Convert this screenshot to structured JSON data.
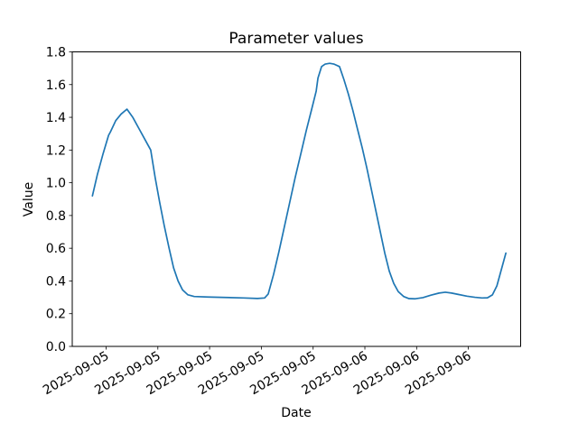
{
  "figure": {
    "background": "#ffffff",
    "axes_background": "#ffffff",
    "spine_color": "#000000",
    "text_color": "#000000"
  },
  "chart_data": {
    "type": "line",
    "title": "Parameter values",
    "xlabel": "Date",
    "ylabel": "Value",
    "ylim": [
      0.0,
      1.8
    ],
    "ytick_values": [
      0.0,
      0.2,
      0.4,
      0.6,
      0.8,
      1.0,
      1.2,
      1.4,
      1.6,
      1.8
    ],
    "ytick_labels": [
      "0.0",
      "0.2",
      "0.4",
      "0.6",
      "0.8",
      "1.0",
      "1.2",
      "1.4",
      "1.6",
      "1.8"
    ],
    "xtick_labels": [
      "2025-09-05",
      "2025-09-05",
      "2025-09-05",
      "2025-09-05",
      "2025-09-05",
      "2025-09-06",
      "2025-09-06",
      "2025-09-06"
    ],
    "xtick_positions": [
      0.0755,
      0.1909,
      0.3063,
      0.4217,
      0.5372,
      0.6526,
      0.768,
      0.8834
    ],
    "xtick_rotation_deg": 30,
    "grid": false,
    "legend": null,
    "series": [
      {
        "name": "parameter-values",
        "color": "#1f77b4",
        "line_width": 1.7,
        "points": [
          [
            0.045,
            0.92
          ],
          [
            0.056,
            1.05
          ],
          [
            0.069,
            1.18
          ],
          [
            0.081,
            1.29
          ],
          [
            0.085,
            1.31
          ],
          [
            0.097,
            1.38
          ],
          [
            0.109,
            1.42
          ],
          [
            0.122,
            1.45
          ],
          [
            0.135,
            1.4
          ],
          [
            0.149,
            1.33
          ],
          [
            0.163,
            1.26
          ],
          [
            0.175,
            1.2
          ],
          [
            0.185,
            1.03
          ],
          [
            0.195,
            0.88
          ],
          [
            0.205,
            0.74
          ],
          [
            0.216,
            0.6
          ],
          [
            0.226,
            0.48
          ],
          [
            0.236,
            0.4
          ],
          [
            0.246,
            0.345
          ],
          [
            0.258,
            0.315
          ],
          [
            0.272,
            0.305
          ],
          [
            0.302,
            0.302
          ],
          [
            0.342,
            0.299
          ],
          [
            0.383,
            0.296
          ],
          [
            0.413,
            0.293
          ],
          [
            0.429,
            0.296
          ],
          [
            0.437,
            0.32
          ],
          [
            0.449,
            0.44
          ],
          [
            0.461,
            0.58
          ],
          [
            0.473,
            0.73
          ],
          [
            0.485,
            0.88
          ],
          [
            0.497,
            1.03
          ],
          [
            0.51,
            1.18
          ],
          [
            0.522,
            1.32
          ],
          [
            0.534,
            1.45
          ],
          [
            0.544,
            1.56
          ],
          [
            0.548,
            1.64
          ],
          [
            0.556,
            1.71
          ],
          [
            0.564,
            1.725
          ],
          [
            0.574,
            1.73
          ],
          [
            0.584,
            1.725
          ],
          [
            0.596,
            1.71
          ],
          [
            0.606,
            1.63
          ],
          [
            0.616,
            1.54
          ],
          [
            0.626,
            1.44
          ],
          [
            0.636,
            1.33
          ],
          [
            0.647,
            1.21
          ],
          [
            0.657,
            1.09
          ],
          [
            0.667,
            0.96
          ],
          [
            0.677,
            0.83
          ],
          [
            0.687,
            0.7
          ],
          [
            0.697,
            0.57
          ],
          [
            0.707,
            0.46
          ],
          [
            0.717,
            0.385
          ],
          [
            0.727,
            0.335
          ],
          [
            0.739,
            0.305
          ],
          [
            0.751,
            0.292
          ],
          [
            0.765,
            0.291
          ],
          [
            0.782,
            0.298
          ],
          [
            0.8,
            0.313
          ],
          [
            0.818,
            0.326
          ],
          [
            0.832,
            0.331
          ],
          [
            0.846,
            0.326
          ],
          [
            0.862,
            0.317
          ],
          [
            0.88,
            0.307
          ],
          [
            0.898,
            0.3
          ],
          [
            0.914,
            0.296
          ],
          [
            0.926,
            0.297
          ],
          [
            0.937,
            0.315
          ],
          [
            0.947,
            0.37
          ],
          [
            0.955,
            0.45
          ],
          [
            0.961,
            0.51
          ],
          [
            0.967,
            0.57
          ]
        ]
      }
    ]
  }
}
